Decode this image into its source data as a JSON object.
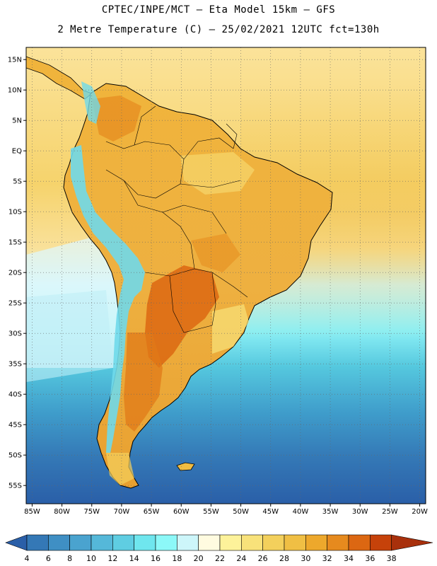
{
  "header": {
    "title_line1": "CPTEC/INPE/MCT –  Eta Model 15km – GFS",
    "title_line2": "2 Metre Temperature (C) – 25/02/2021 12UTC fct=130h"
  },
  "axes": {
    "lat_labels": [
      "15N",
      "10N",
      "5N",
      "EQ",
      "5S",
      "10S",
      "15S",
      "20S",
      "25S",
      "30S",
      "35S",
      "40S",
      "45S",
      "50S",
      "55S"
    ],
    "lat_values": [
      15,
      10,
      5,
      0,
      -5,
      -10,
      -15,
      -20,
      -25,
      -30,
      -35,
      -40,
      -45,
      -50,
      -55
    ],
    "lon_labels": [
      "85W",
      "80W",
      "75W",
      "70W",
      "65W",
      "60W",
      "55W",
      "50W",
      "45W",
      "40W",
      "35W",
      "30W",
      "25W",
      "20W"
    ],
    "lon_values": [
      -85,
      -80,
      -75,
      -70,
      -65,
      -60,
      -55,
      -50,
      -45,
      -40,
      -35,
      -30,
      -25,
      -20
    ],
    "lat_range": [
      -58,
      17
    ],
    "lon_range": [
      -86,
      -19
    ],
    "grid": "dotted"
  },
  "colorbar": {
    "ticks": [
      "4",
      "6",
      "8",
      "10",
      "12",
      "14",
      "16",
      "18",
      "20",
      "22",
      "24",
      "26",
      "28",
      "30",
      "32",
      "34",
      "36",
      "38"
    ],
    "colors": [
      "#2a5fa8",
      "#3478b6",
      "#3f8fc4",
      "#4aa3cf",
      "#55b8d9",
      "#5fcde2",
      "#6fe6ee",
      "#8cf8f8",
      "#cdf6fa",
      "#fffbe0",
      "#fdf29a",
      "#f8e27a",
      "#f3d05c",
      "#f0bf44",
      "#eda82c",
      "#e68a1e",
      "#dc6712",
      "#c6420a",
      "#a8300c"
    ]
  },
  "colors": {
    "ocean_warm": "#f6d36c",
    "ocean_mid": "#fbe9a0",
    "ocean_cool": "#cdf6fa",
    "land": "#f0bc42",
    "land_hot": "#dc6712",
    "andes": "#6fd9ea",
    "coast": "#000000"
  }
}
